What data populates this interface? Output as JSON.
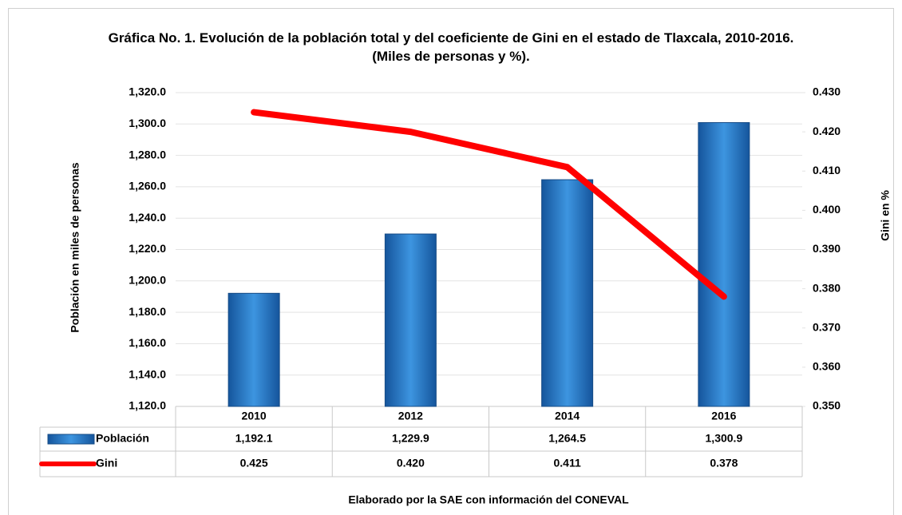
{
  "chart_data": {
    "type": "bar_line",
    "title": "Gráfica No. 1. Evolución de la población total y del coeficiente de Gini en el estado de Tlaxcala, 2010-2016. (Miles de personas y %).",
    "y_label": "Población en miles de personas",
    "y2_label": "Gini en %",
    "source": "Elaborado por la SAE con información del CONEVAL",
    "categories": [
      "2010",
      "2012",
      "2014",
      "2016"
    ],
    "series": [
      {
        "name": "Población",
        "type": "bar",
        "color": "#1f6fbf",
        "values": [
          1192.1,
          1229.9,
          1264.5,
          1300.9
        ],
        "value_labels": [
          "1,192.1",
          "1,229.9",
          "1,264.5",
          "1,300.9"
        ]
      },
      {
        "name": "Gini",
        "type": "line",
        "axis": "y2",
        "color": "#ff0000",
        "values": [
          0.425,
          0.42,
          0.411,
          0.378
        ],
        "value_labels": [
          "0.425",
          "0.420",
          "0.411",
          "0.378"
        ]
      }
    ],
    "ylim": [
      1120,
      1320
    ],
    "yticks": [
      {
        "value": 1120,
        "label": "1,120.0"
      },
      {
        "value": 1140,
        "label": "1,140.0"
      },
      {
        "value": 1160,
        "label": "1,160.0"
      },
      {
        "value": 1180,
        "label": "1,180.0"
      },
      {
        "value": 1200,
        "label": "1,200.0"
      },
      {
        "value": 1220,
        "label": "1,220.0"
      },
      {
        "value": 1240,
        "label": "1,240.0"
      },
      {
        "value": 1260,
        "label": "1,260.0"
      },
      {
        "value": 1280,
        "label": "1,280.0"
      },
      {
        "value": 1300,
        "label": "1,300.0"
      },
      {
        "value": 1320,
        "label": "1,320.0"
      }
    ],
    "y2lim": [
      0.35,
      0.43
    ],
    "y2ticks": [
      {
        "value": 0.35,
        "label": "0.350"
      },
      {
        "value": 0.36,
        "label": "0.360"
      },
      {
        "value": 0.37,
        "label": "0.370"
      },
      {
        "value": 0.38,
        "label": "0.380"
      },
      {
        "value": 0.39,
        "label": "0.390"
      },
      {
        "value": 0.4,
        "label": "0.400"
      },
      {
        "value": 0.41,
        "label": "0.410"
      },
      {
        "value": 0.42,
        "label": "0.420"
      },
      {
        "value": 0.43,
        "label": "0.430"
      }
    ],
    "grid": true
  }
}
